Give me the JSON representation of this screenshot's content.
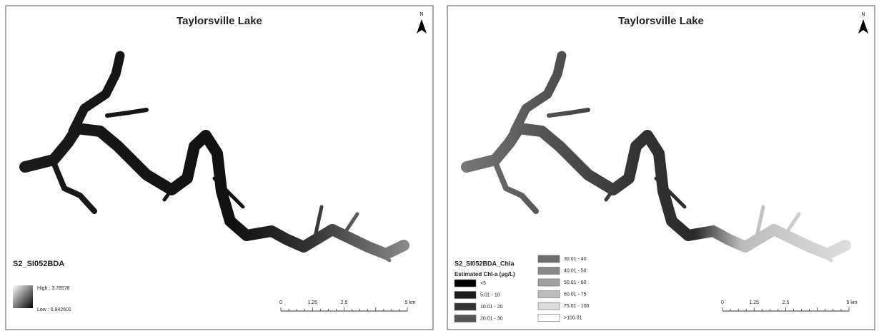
{
  "panels": [
    {
      "title": "Taylorsville Lake",
      "north": "N",
      "legend": {
        "title": "S2_SI052BDA",
        "high": "High : 3.78578",
        "low": "Low : 0.942601"
      },
      "scale": [
        "0",
        "1.25",
        "2.5",
        "5 km"
      ]
    },
    {
      "title": "Taylorsville Lake",
      "north": "N",
      "legend": {
        "title": "S2_SI052BDA_Chla",
        "subtitle": "Estimated Chl-a (µg/L)",
        "classes": [
          {
            "label": "<5",
            "color": "#000000"
          },
          {
            "label": "5.01 - 10",
            "color": "#1c1c1c"
          },
          {
            "label": "10.01 - 20",
            "color": "#333333"
          },
          {
            "label": "20.01 - 30",
            "color": "#555555"
          },
          {
            "label": "30.01 - 40",
            "color": "#6e6e6e"
          },
          {
            "label": "40.01 - 50",
            "color": "#888888"
          },
          {
            "label": "50.01 - 60",
            "color": "#a0a0a0"
          },
          {
            "label": "60.01 - 75",
            "color": "#bdbdbd"
          },
          {
            "label": "75.01 - 100",
            "color": "#dcdcdc"
          },
          {
            "label": ">100.01",
            "color": "#ffffff"
          }
        ]
      },
      "scale": [
        "0",
        "1.25",
        "2.5",
        "5 km"
      ]
    }
  ]
}
